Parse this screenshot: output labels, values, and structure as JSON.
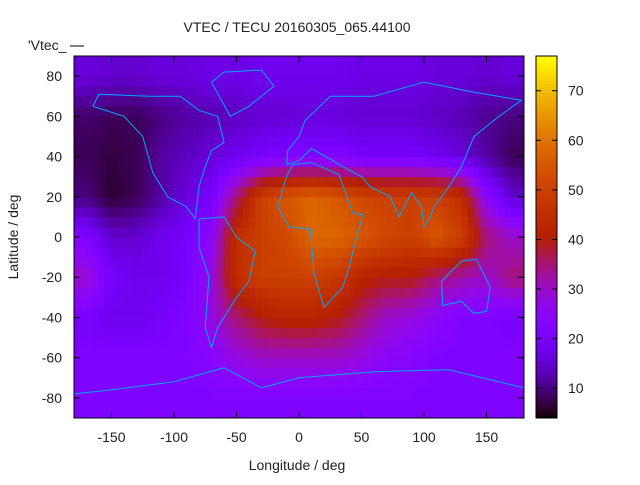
{
  "chart_data": {
    "type": "heatmap",
    "title": "VTEC / TECU 20160305_065.44100",
    "xlabel": "Longitude / deg",
    "ylabel": "Latitude / deg",
    "key_label": "'Vtec_",
    "xlim": [
      -180,
      180
    ],
    "ylim": [
      -90,
      90
    ],
    "xticks": [
      -150,
      -100,
      -50,
      0,
      50,
      100,
      150
    ],
    "yticks": [
      -80,
      -60,
      -40,
      -20,
      0,
      20,
      40,
      60,
      80
    ],
    "cbrange": [
      4,
      77
    ],
    "cbticks": [
      10,
      20,
      30,
      40,
      50,
      60,
      70
    ],
    "grid_lon_centers": [
      -170,
      -150,
      -130,
      -110,
      -90,
      -70,
      -50,
      -30,
      -10,
      10,
      30,
      50,
      70,
      90,
      110,
      130,
      150,
      170
    ],
    "grid_lat_centers": [
      80,
      60,
      40,
      20,
      0,
      -20,
      -40,
      -60,
      -80
    ],
    "values": [
      [
        16,
        15,
        15,
        16,
        16,
        17,
        17,
        18,
        18,
        18,
        18,
        17,
        17,
        17,
        16,
        16,
        15,
        16
      ],
      [
        9,
        8,
        8,
        10,
        12,
        13,
        14,
        15,
        15,
        16,
        16,
        15,
        15,
        15,
        14,
        13,
        11,
        10
      ],
      [
        8,
        7,
        8,
        12,
        14,
        16,
        18,
        20,
        22,
        22,
        22,
        20,
        20,
        20,
        18,
        16,
        12,
        8
      ],
      [
        10,
        6,
        8,
        12,
        16,
        20,
        35,
        50,
        55,
        58,
        55,
        52,
        50,
        50,
        50,
        45,
        25,
        15
      ],
      [
        22,
        15,
        15,
        18,
        20,
        25,
        45,
        50,
        52,
        58,
        58,
        55,
        52,
        50,
        55,
        50,
        35,
        30
      ],
      [
        30,
        20,
        18,
        18,
        20,
        28,
        45,
        50,
        50,
        50,
        48,
        42,
        40,
        40,
        35,
        32,
        30,
        35
      ],
      [
        20,
        18,
        18,
        20,
        22,
        28,
        35,
        40,
        42,
        42,
        40,
        35,
        30,
        28,
        25,
        22,
        22,
        20
      ],
      [
        22,
        22,
        22,
        22,
        22,
        24,
        28,
        30,
        30,
        30,
        30,
        28,
        25,
        24,
        22,
        22,
        22,
        22
      ],
      [
        22,
        22,
        22,
        22,
        22,
        22,
        22,
        22,
        22,
        22,
        22,
        22,
        22,
        22,
        22,
        22,
        22,
        22
      ]
    ]
  }
}
